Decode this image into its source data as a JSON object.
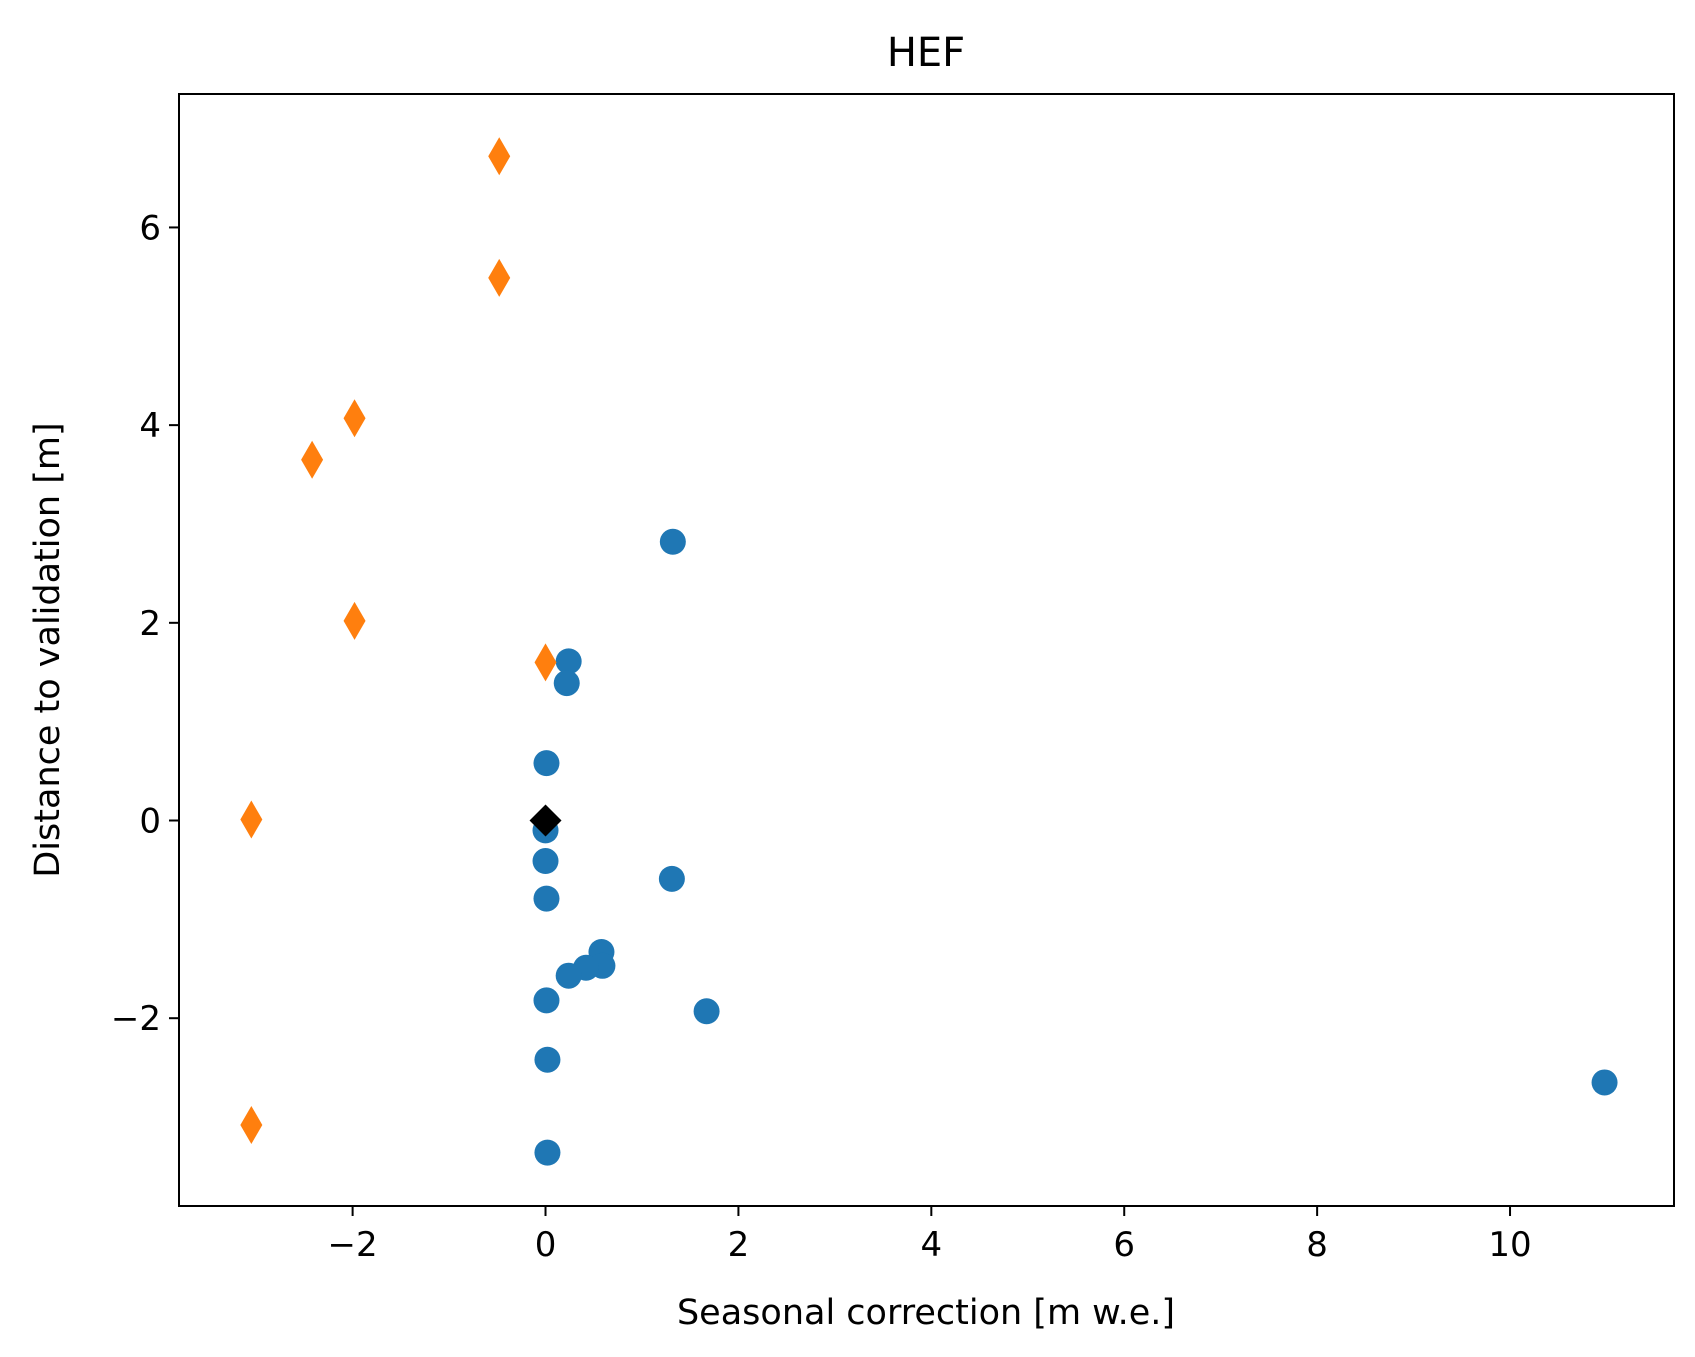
{
  "chart_data": {
    "type": "scatter",
    "title": "HEF",
    "xlabel": "Seasonal correction [m w.e.]",
    "ylabel": "Distance to validation [m]",
    "xlim": [
      -3.8,
      11.7
    ],
    "ylim": [
      -3.9,
      7.35
    ],
    "xticks": [
      -2,
      0,
      2,
      4,
      6,
      8,
      10
    ],
    "xtick_labels": [
      "−2",
      "0",
      "2",
      "4",
      "6",
      "8",
      "10"
    ],
    "yticks": [
      -2,
      0,
      2,
      4,
      6
    ],
    "ytick_labels": [
      "−2",
      "0",
      "2",
      "4",
      "6"
    ],
    "grid": false,
    "series": [
      {
        "marker": "circle",
        "color": "#1f77b4",
        "points": [
          [
            1.32,
            2.82
          ],
          [
            0.24,
            1.61
          ],
          [
            0.22,
            1.39
          ],
          [
            0.01,
            0.58
          ],
          [
            0.0,
            -0.1
          ],
          [
            0.0,
            -0.41
          ],
          [
            0.01,
            -0.79
          ],
          [
            1.31,
            -0.59
          ],
          [
            0.58,
            -1.33
          ],
          [
            0.59,
            -1.47
          ],
          [
            0.42,
            -1.49
          ],
          [
            0.24,
            -1.57
          ],
          [
            0.01,
            -1.82
          ],
          [
            1.67,
            -1.93
          ],
          [
            0.02,
            -2.42
          ],
          [
            0.02,
            -3.36
          ],
          [
            10.98,
            -2.65
          ]
        ]
      },
      {
        "marker": "thin_diamond",
        "color": "#ff7f0e",
        "points": [
          [
            -0.48,
            6.72
          ],
          [
            -0.48,
            5.49
          ],
          [
            -1.98,
            4.07
          ],
          [
            -2.42,
            3.65
          ],
          [
            -1.98,
            2.02
          ],
          [
            0.0,
            1.6
          ],
          [
            -3.05,
            0.01
          ],
          [
            -3.05,
            -3.08
          ]
        ]
      },
      {
        "marker": "diamond",
        "color": "#000000",
        "points": [
          [
            0.0,
            0.0
          ]
        ]
      }
    ]
  }
}
